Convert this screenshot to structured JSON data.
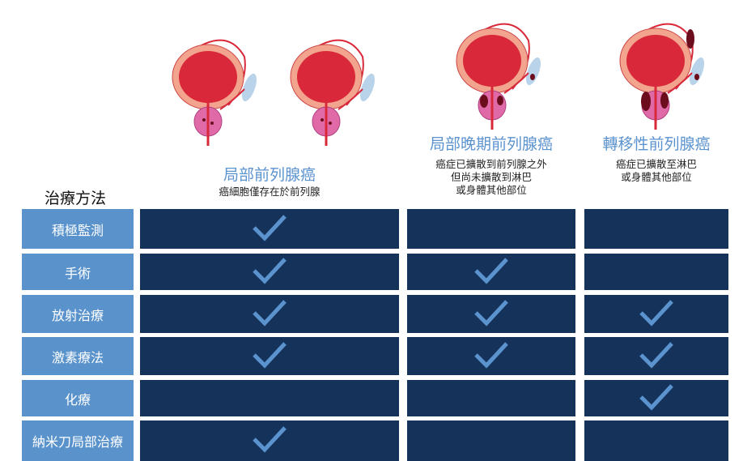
{
  "header": {
    "methods_label": "治療方法"
  },
  "columns": [
    {
      "title": "局部前列腺癌",
      "subtitle": [
        "癌細胞僅存在於前列腺"
      ]
    },
    {
      "title": "局部晚期前列腺癌",
      "subtitle": [
        "癌症已擴散到前列腺之外",
        "但尚未擴散到淋巴",
        "或身體其他部位"
      ]
    },
    {
      "title": "轉移性前列腺癌",
      "subtitle": [
        "癌症已擴散至淋巴",
        "或身體其他部位"
      ]
    }
  ],
  "rows": [
    {
      "label": "積極監測",
      "checks": [
        true,
        false,
        false
      ]
    },
    {
      "label": "手術",
      "checks": [
        true,
        true,
        false
      ]
    },
    {
      "label": "放射治療",
      "checks": [
        true,
        true,
        true
      ]
    },
    {
      "label": "激素療法",
      "checks": [
        true,
        true,
        true
      ]
    },
    {
      "label": "化療",
      "checks": [
        false,
        false,
        true
      ]
    },
    {
      "label": "納米刀局部治療",
      "checks": [
        true,
        false,
        false
      ]
    }
  ],
  "colors": {
    "label_bg": "#5a93cc",
    "cell_bg": "#15325a",
    "check": "#5b93cf",
    "title": "#5b93cf",
    "bladder": "#d8283a"
  }
}
